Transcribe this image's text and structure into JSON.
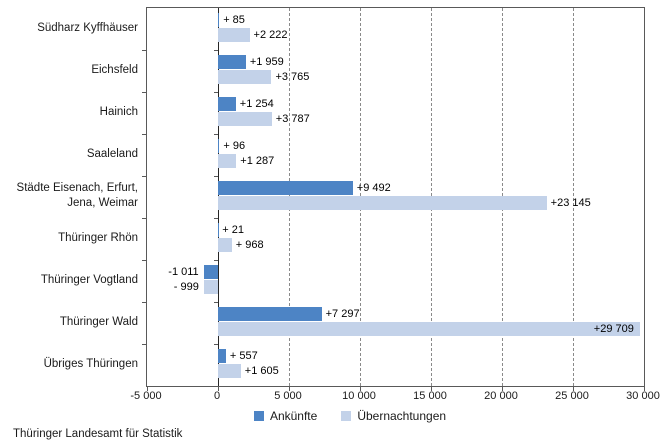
{
  "chart_data": {
    "type": "bar",
    "orientation": "horizontal",
    "title": "",
    "categories": [
      "Südharz Kyffhäuser",
      "Eichsfeld",
      "Hainich",
      "Saaleland",
      "Städte Eisenach, Erfurt,\nJena, Weimar",
      "Thüringer Rhön",
      "Thüringer Vogtland",
      "Thüringer Wald",
      "Übriges Thüringen"
    ],
    "series": [
      {
        "name": "Ankünfte",
        "color": "#4d84c5",
        "values": [
          85,
          1959,
          1254,
          96,
          9492,
          21,
          -1011,
          7297,
          557
        ],
        "labels": [
          "+ 85",
          "+1 959",
          "+1 254",
          "+ 96",
          "+9 492",
          "+ 21",
          "-1 011",
          "+7 297",
          "+ 557"
        ]
      },
      {
        "name": "Übernachtungen",
        "color": "#c3d2e9",
        "values": [
          2222,
          3765,
          3787,
          1287,
          23145,
          968,
          -999,
          29709,
          1605
        ],
        "labels": [
          "+2 222",
          "+3 765",
          "+3 787",
          "+1 287",
          "+23 145",
          "+ 968",
          "- 999",
          "+29 709",
          "+1 605"
        ]
      }
    ],
    "xlim": [
      -5000,
      30000
    ],
    "x_ticks": [
      -5000,
      0,
      5000,
      10000,
      15000,
      20000,
      25000,
      30000
    ],
    "x_tick_labels": [
      "-5 000",
      "0",
      "5 000",
      "10 000",
      "15 000",
      "20 000",
      "25 000",
      "30 000"
    ],
    "grid": "dashed-vertical",
    "legend_position": "bottom"
  },
  "source": "Thüringer Landesamt für Statistik",
  "colors": {
    "series1": "#4d84c5",
    "series2": "#c3d2e9",
    "plot_border": "#595959",
    "zero_axis": "#262626",
    "gridline": "#8a8a8a"
  }
}
